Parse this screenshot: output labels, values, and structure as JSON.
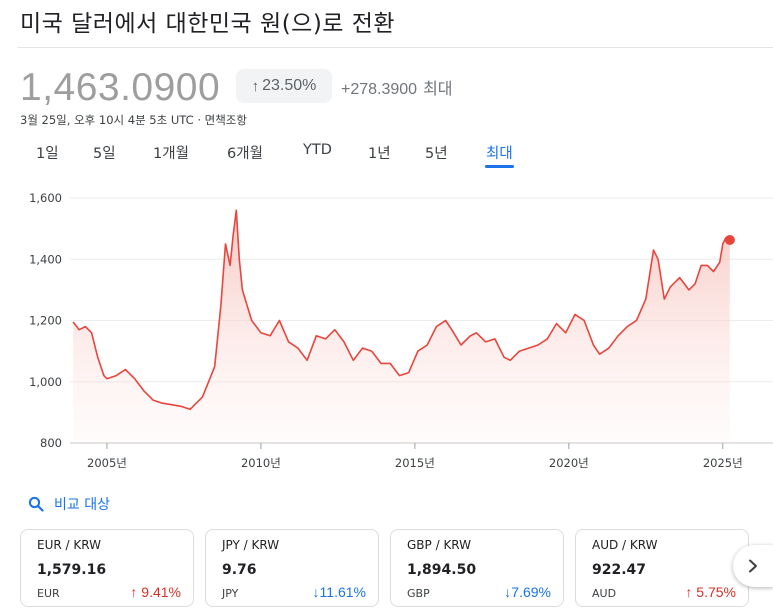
{
  "page_title": "미국 달러에서 대한민국 원(으)로 전환",
  "quote": {
    "price": "1,463.0900",
    "change_percent": "23.50%",
    "change_absolute": "+278.3900",
    "change_period": "최대",
    "timestamp": "3월 25일, 오후 10시 4분 5초 UTC · 면책조항"
  },
  "ranges": [
    {
      "label": "1일",
      "active": false
    },
    {
      "label": "5일",
      "active": false
    },
    {
      "label": "1개월",
      "active": false
    },
    {
      "label": "6개월",
      "active": false
    },
    {
      "label": "YTD",
      "active": false
    },
    {
      "label": "1년",
      "active": false
    },
    {
      "label": "5년",
      "active": false
    },
    {
      "label": "최대",
      "active": true
    }
  ],
  "compare": {
    "label": "비교 대상",
    "icon": "search-icon"
  },
  "cards": [
    {
      "pair": "EUR / KRW",
      "value": "1,579.16",
      "currency": "EUR",
      "direction": "up",
      "change": "9.41%"
    },
    {
      "pair": "JPY / KRW",
      "value": "9.76",
      "currency": "JPY",
      "direction": "down",
      "change": "11.61%"
    },
    {
      "pair": "GBP / KRW",
      "value": "1,894.50",
      "currency": "GBP",
      "direction": "down",
      "change": "7.69%"
    },
    {
      "pair": "AUD / KRW",
      "value": "922.47",
      "currency": "AUD",
      "direction": "up",
      "change": "5.75%"
    }
  ],
  "next_button": {
    "icon": "chevron-right-icon"
  },
  "colors": {
    "line": "#e8453c",
    "fill": "#f9d7d3",
    "accent": "#1a73e8",
    "up": "#d93025",
    "down": "#1a73e8",
    "muted": "#9e9e9e"
  },
  "chart_data": {
    "type": "area",
    "xlim": [
      2003.8,
      2025.3
    ],
    "ylim": [
      800,
      1600
    ],
    "yticks": [
      800,
      1000,
      1200,
      1400,
      1600
    ],
    "ytick_labels": [
      "800",
      "1,000",
      "1,200",
      "1,400",
      "1,600"
    ],
    "xticks": [
      2005,
      2010,
      2015,
      2020,
      2025
    ],
    "xtick_labels": [
      "2005년",
      "2010년",
      "2015년",
      "2020년",
      "2025년"
    ],
    "grid": true,
    "series": [
      {
        "x": [
          2003.9,
          2004.1,
          2004.3,
          2004.5,
          2004.7,
          2004.9,
          2005.0,
          2005.3,
          2005.6,
          2005.9,
          2006.2,
          2006.5,
          2006.8,
          2007.1,
          2007.4,
          2007.7,
          2007.9,
          2008.1,
          2008.3,
          2008.5,
          2008.7,
          2008.85,
          2009.0,
          2009.1,
          2009.2,
          2009.3,
          2009.4,
          2009.55,
          2009.7,
          2009.85,
          2010.0,
          2010.3,
          2010.6,
          2010.9,
          2011.2,
          2011.5,
          2011.8,
          2012.1,
          2012.4,
          2012.7,
          2013.0,
          2013.3,
          2013.6,
          2013.9,
          2014.2,
          2014.5,
          2014.8,
          2015.1,
          2015.4,
          2015.7,
          2016.0,
          2016.2,
          2016.5,
          2016.8,
          2017.0,
          2017.3,
          2017.6,
          2017.9,
          2018.1,
          2018.4,
          2018.7,
          2019.0,
          2019.3,
          2019.6,
          2019.9,
          2020.2,
          2020.5,
          2020.8,
          2021.0,
          2021.3,
          2021.6,
          2021.9,
          2022.2,
          2022.5,
          2022.75,
          2022.9,
          2023.1,
          2023.3,
          2023.6,
          2023.9,
          2024.1,
          2024.3,
          2024.5,
          2024.7,
          2024.9,
          2025.0,
          2025.1,
          2025.23
        ],
        "y": [
          1195,
          1170,
          1180,
          1160,
          1080,
          1020,
          1010,
          1020,
          1040,
          1010,
          970,
          940,
          930,
          925,
          920,
          910,
          930,
          950,
          1000,
          1050,
          1250,
          1450,
          1380,
          1480,
          1560,
          1400,
          1300,
          1250,
          1200,
          1180,
          1160,
          1150,
          1200,
          1130,
          1110,
          1070,
          1150,
          1140,
          1170,
          1130,
          1070,
          1110,
          1100,
          1060,
          1060,
          1020,
          1030,
          1100,
          1120,
          1180,
          1200,
          1170,
          1120,
          1150,
          1160,
          1130,
          1140,
          1080,
          1070,
          1100,
          1110,
          1120,
          1140,
          1190,
          1160,
          1220,
          1200,
          1120,
          1090,
          1110,
          1150,
          1180,
          1200,
          1270,
          1430,
          1400,
          1270,
          1310,
          1340,
          1300,
          1320,
          1380,
          1380,
          1360,
          1390,
          1450,
          1470,
          1463
        ]
      }
    ]
  }
}
